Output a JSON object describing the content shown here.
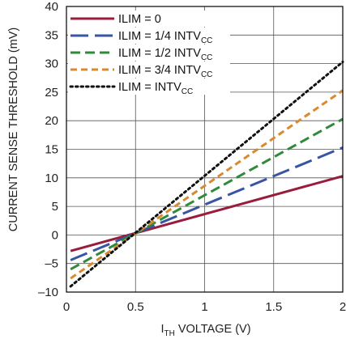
{
  "chart_data": {
    "type": "line",
    "xlabel": {
      "main": "I",
      "sub": "TH",
      "rest": " VOLTAGE (V)"
    },
    "ylabel": "CURRENT SENSE THRESHOLD (mV)",
    "xlim": [
      0,
      2
    ],
    "ylim": [
      -10,
      40
    ],
    "x_ticks": [
      {
        "value": 0,
        "label": "0"
      },
      {
        "value": 0.5,
        "label": "0.5"
      },
      {
        "value": 1,
        "label": "1"
      },
      {
        "value": 1.5,
        "label": "1.5"
      },
      {
        "value": 2,
        "label": "2"
      }
    ],
    "y_ticks": [
      {
        "value": -10,
        "label": "–10"
      },
      {
        "value": -5,
        "label": "–5"
      },
      {
        "value": 0,
        "label": "0"
      },
      {
        "value": 5,
        "label": "5"
      },
      {
        "value": 10,
        "label": "10"
      },
      {
        "value": 15,
        "label": "15"
      },
      {
        "value": 20,
        "label": "20"
      },
      {
        "value": 25,
        "label": "25"
      },
      {
        "value": 30,
        "label": "30"
      },
      {
        "value": 35,
        "label": "35"
      },
      {
        "value": 40,
        "label": "40"
      }
    ],
    "grid": true,
    "legend_position": "top-left",
    "series": [
      {
        "name": "ILIM = 0",
        "name_main": "ILIM = 0",
        "name_sub": "",
        "color": "#9b1b3b",
        "dash": "solid",
        "x": [
          0.03,
          2.0
        ],
        "y": [
          -2.8,
          10.3
        ]
      },
      {
        "name": "ILIM = 1/4 INTVCC",
        "name_main": "ILIM = 1/4 INTV",
        "name_sub": "CC",
        "color": "#3855a4",
        "dash": "long-dash",
        "x": [
          0.03,
          2.0
        ],
        "y": [
          -4.4,
          15.3
        ]
      },
      {
        "name": "ILIM = 1/2 INTVCC",
        "name_main": "ILIM = 1/2 INTV",
        "name_sub": "CC",
        "color": "#2f8a3a",
        "dash": "dash",
        "x": [
          0.03,
          2.0
        ],
        "y": [
          -6.0,
          20.3
        ]
      },
      {
        "name": "ILIM = 3/4 INTVCC",
        "name_main": "ILIM = 3/4 INTV",
        "name_sub": "CC",
        "color": "#d9892e",
        "dash": "short-dash",
        "x": [
          0.03,
          2.0
        ],
        "y": [
          -7.6,
          25.3
        ]
      },
      {
        "name": "ILIM = INTVCC",
        "name_main": "ILIM = INTV",
        "name_sub": "CC",
        "color": "#111111",
        "dash": "dot",
        "x": [
          0.03,
          2.0
        ],
        "y": [
          -9.0,
          30.3
        ]
      }
    ]
  }
}
